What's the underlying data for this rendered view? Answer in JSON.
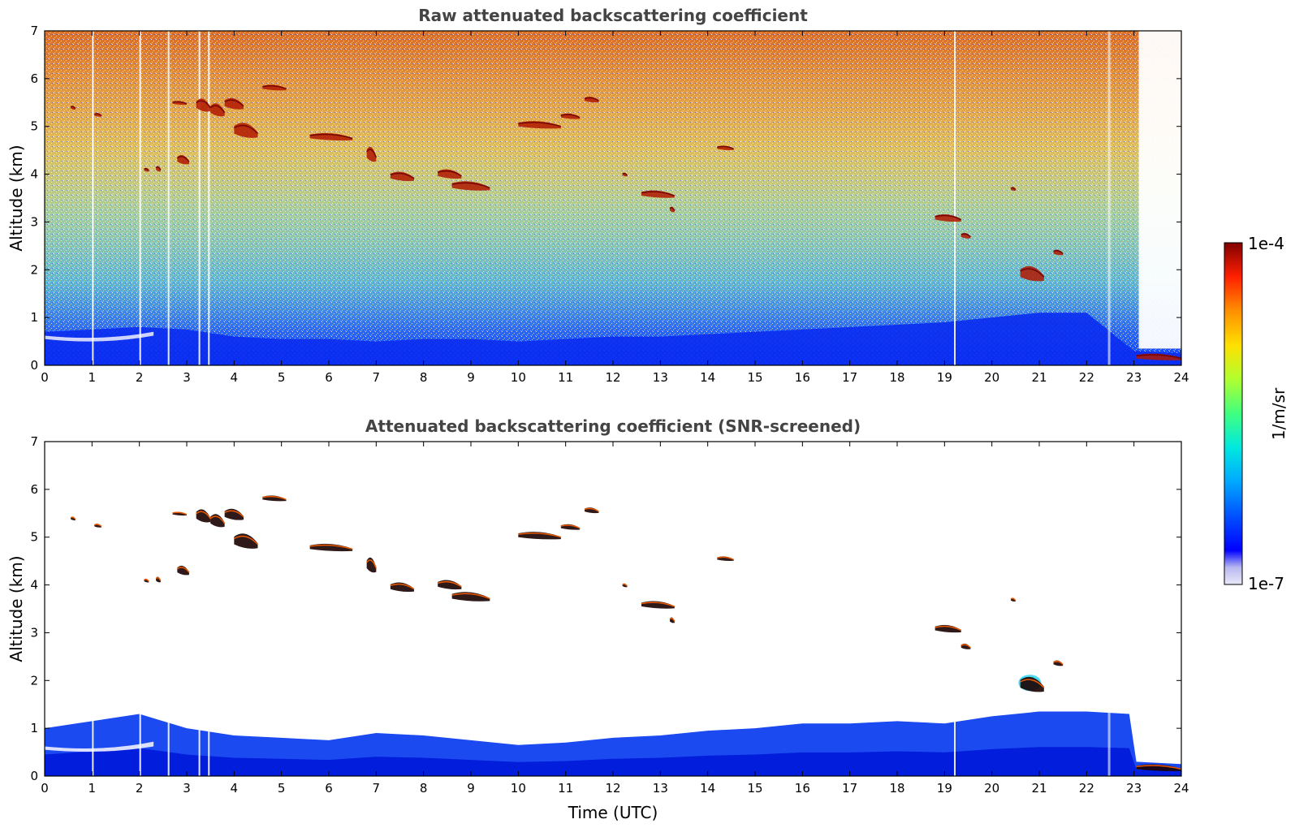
{
  "chart_data": [
    {
      "type": "heatmap",
      "title": "Raw attenuated backscattering coefficient",
      "xlabel": "",
      "ylabel": "Altitude (km)",
      "xlim": [
        0,
        24
      ],
      "ylim": [
        0,
        7
      ],
      "x_ticks": [
        "0",
        "1",
        "2",
        "3",
        "4",
        "5",
        "6",
        "7",
        "8",
        "9",
        "10",
        "11",
        "12",
        "13",
        "14",
        "15",
        "16",
        "17",
        "18",
        "19",
        "20",
        "21",
        "22",
        "23",
        "24"
      ],
      "y_ticks": [
        "0",
        "1",
        "2",
        "3",
        "4",
        "5",
        "6",
        "7"
      ],
      "grid": false,
      "boundary_layer_top_km": [
        [
          0,
          0.7
        ],
        [
          1,
          0.75
        ],
        [
          2,
          0.8
        ],
        [
          3,
          0.75
        ],
        [
          4,
          0.6
        ],
        [
          5,
          0.55
        ],
        [
          6,
          0.55
        ],
        [
          7,
          0.5
        ],
        [
          8,
          0.55
        ],
        [
          9,
          0.55
        ],
        [
          10,
          0.5
        ],
        [
          11,
          0.55
        ],
        [
          12,
          0.6
        ],
        [
          13,
          0.6
        ],
        [
          14,
          0.65
        ],
        [
          15,
          0.7
        ],
        [
          16,
          0.75
        ],
        [
          17,
          0.8
        ],
        [
          18,
          0.85
        ],
        [
          19,
          0.9
        ],
        [
          20,
          1.0
        ],
        [
          21,
          1.1
        ],
        [
          22,
          1.1
        ],
        [
          23,
          0.3
        ],
        [
          24,
          0.25
        ]
      ],
      "cloud_features": [
        {
          "t0": 0.55,
          "t1": 0.65,
          "z0": 5.35,
          "z1": 5.45
        },
        {
          "t0": 1.05,
          "t1": 1.2,
          "z0": 5.2,
          "z1": 5.3
        },
        {
          "t0": 2.1,
          "t1": 2.2,
          "z0": 4.05,
          "z1": 4.15
        },
        {
          "t0": 2.35,
          "t1": 2.45,
          "z0": 4.05,
          "z1": 4.2
        },
        {
          "t0": 2.7,
          "t1": 3.0,
          "z0": 5.45,
          "z1": 5.55
        },
        {
          "t0": 3.2,
          "t1": 3.5,
          "z0": 5.3,
          "z1": 5.65
        },
        {
          "t0": 3.5,
          "t1": 3.8,
          "z0": 5.2,
          "z1": 5.55
        },
        {
          "t0": 3.8,
          "t1": 4.2,
          "z0": 5.35,
          "z1": 5.65
        },
        {
          "t0": 4.0,
          "t1": 4.5,
          "z0": 4.75,
          "z1": 5.15
        },
        {
          "t0": 4.6,
          "t1": 5.1,
          "z0": 5.75,
          "z1": 5.9
        },
        {
          "t0": 2.8,
          "t1": 3.05,
          "z0": 4.2,
          "z1": 4.45
        },
        {
          "t0": 5.6,
          "t1": 6.5,
          "z0": 4.7,
          "z1": 4.9
        },
        {
          "t0": 6.8,
          "t1": 7.0,
          "z0": 4.25,
          "z1": 4.65
        },
        {
          "t0": 7.3,
          "t1": 7.8,
          "z0": 3.85,
          "z1": 4.1
        },
        {
          "t0": 8.3,
          "t1": 8.8,
          "z0": 3.9,
          "z1": 4.15
        },
        {
          "t0": 8.6,
          "t1": 9.4,
          "z0": 3.65,
          "z1": 3.9
        },
        {
          "t0": 10.0,
          "t1": 10.9,
          "z0": 4.95,
          "z1": 5.15
        },
        {
          "t0": 10.9,
          "t1": 11.3,
          "z0": 5.15,
          "z1": 5.3
        },
        {
          "t0": 11.4,
          "t1": 11.7,
          "z0": 5.5,
          "z1": 5.65
        },
        {
          "t0": 12.2,
          "t1": 12.3,
          "z0": 3.95,
          "z1": 4.05
        },
        {
          "t0": 12.6,
          "t1": 13.3,
          "z0": 3.5,
          "z1": 3.7
        },
        {
          "t0": 13.2,
          "t1": 13.3,
          "z0": 3.2,
          "z1": 3.35
        },
        {
          "t0": 14.2,
          "t1": 14.55,
          "z0": 4.5,
          "z1": 4.62
        },
        {
          "t0": 18.8,
          "t1": 19.35,
          "z0": 3.0,
          "z1": 3.2
        },
        {
          "t0": 19.35,
          "t1": 19.55,
          "z0": 2.65,
          "z1": 2.8
        },
        {
          "t0": 20.4,
          "t1": 20.5,
          "z0": 3.65,
          "z1": 3.75
        },
        {
          "t0": 20.6,
          "t1": 21.1,
          "z0": 1.75,
          "z1": 2.15
        },
        {
          "t0": 21.3,
          "t1": 21.5,
          "z0": 2.3,
          "z1": 2.45
        },
        {
          "t0": 23.05,
          "t1": 24.0,
          "z0": 0.1,
          "z1": 0.28
        }
      ]
    },
    {
      "type": "heatmap",
      "title": "Attenuated backscattering coefficient (SNR-screened)",
      "xlabel": "Time (UTC)",
      "ylabel": "Altitude (km)",
      "xlim": [
        0,
        24
      ],
      "ylim": [
        0,
        7
      ],
      "x_ticks": [
        "0",
        "1",
        "2",
        "3",
        "4",
        "5",
        "6",
        "7",
        "8",
        "9",
        "10",
        "11",
        "12",
        "13",
        "14",
        "15",
        "16",
        "17",
        "18",
        "19",
        "20",
        "21",
        "22",
        "23",
        "24"
      ],
      "y_ticks": [
        "0",
        "1",
        "2",
        "3",
        "4",
        "5",
        "6",
        "7"
      ],
      "grid": false,
      "screened_layer_top_km": [
        [
          0,
          1.0
        ],
        [
          1,
          1.15
        ],
        [
          2,
          1.3
        ],
        [
          2.5,
          1.15
        ],
        [
          3,
          1.0
        ],
        [
          4,
          0.85
        ],
        [
          5,
          0.8
        ],
        [
          6,
          0.75
        ],
        [
          7,
          0.9
        ],
        [
          8,
          0.85
        ],
        [
          9,
          0.75
        ],
        [
          10,
          0.65
        ],
        [
          11,
          0.7
        ],
        [
          12,
          0.8
        ],
        [
          13,
          0.85
        ],
        [
          14,
          0.95
        ],
        [
          15,
          1.0
        ],
        [
          16,
          1.1
        ],
        [
          17,
          1.1
        ],
        [
          18,
          1.15
        ],
        [
          19,
          1.1
        ],
        [
          20,
          1.25
        ],
        [
          21,
          1.35
        ],
        [
          22,
          1.35
        ],
        [
          22.9,
          1.3
        ],
        [
          23.05,
          0.3
        ],
        [
          24,
          0.25
        ]
      ]
    }
  ],
  "colorbar": {
    "max_label": "1e-4",
    "min_label": "1e-7",
    "unit_label": "1/m/sr"
  },
  "colors": {
    "colormap": [
      "#e8e8f8",
      "#b8b8f0",
      "#0000ff",
      "#0060ff",
      "#00c0ff",
      "#00f0c0",
      "#60ff60",
      "#d0ff30",
      "#ffe000",
      "#ff9000",
      "#ff3000",
      "#d00000",
      "#800000"
    ],
    "axis": "#000000",
    "title": "#444444"
  }
}
